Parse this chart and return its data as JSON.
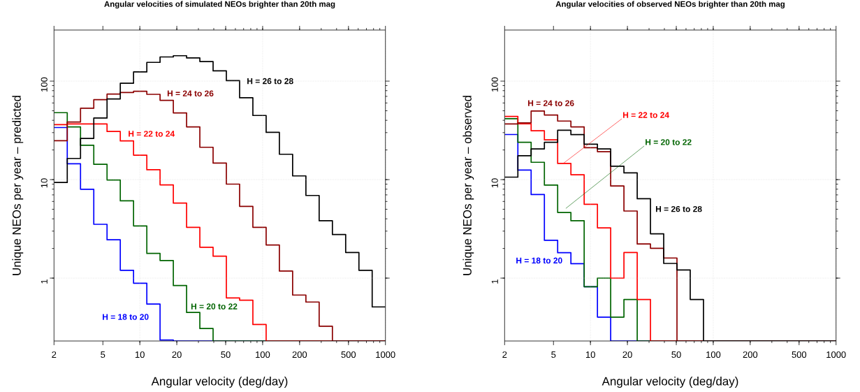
{
  "chart_data": [
    {
      "type": "histogram",
      "title": "Angular velocities of simulated NEOs brighter than 20th mag",
      "xlabel": "Angular velocity (deg/day)",
      "ylabel": "Unique NEOs per year – predicted",
      "log": "xy",
      "grid": true,
      "xlim": [
        2,
        1000
      ],
      "ylim": [
        0.23,
        330
      ],
      "xticks": [
        2,
        5,
        10,
        20,
        50,
        100,
        200,
        500,
        1000
      ],
      "yticks": [
        1,
        10,
        100
      ],
      "bins": [
        2,
        2.564,
        3.288,
        4.216,
        5.406,
        6.932,
        8.888,
        11.4,
        14.61,
        18.74,
        24.03,
        30.81,
        39.5,
        50.65,
        64.94,
        83.27,
        106.8,
        136.9,
        175.5,
        225.1,
        288.6,
        370.0,
        474.5,
        608.4,
        780.1,
        1000
      ],
      "series": [
        {
          "name": "H = 18 to 20",
          "color": "#0000ff",
          "values": [
            33.8,
            14.5,
            7.99,
            3.52,
            2.45,
            1.2,
            0.888,
            0.545,
            0.235,
            null,
            null,
            null,
            null,
            null,
            null,
            null,
            null,
            null,
            null,
            null,
            null,
            null,
            null,
            null,
            null
          ]
        },
        {
          "name": "H = 20 to 22",
          "color": "#006400",
          "values": [
            47.8,
            34.3,
            22.3,
            14.3,
            9.92,
            6.09,
            3.39,
            1.78,
            1.51,
            0.841,
            0.448,
            0.308,
            null,
            null,
            null,
            null,
            null,
            null,
            null,
            null,
            null,
            null,
            null,
            null,
            null
          ]
        },
        {
          "name": "H = 22 to 24",
          "color": "#ff0000",
          "values": [
            36.1,
            36.7,
            36.7,
            36.7,
            30.8,
            24.7,
            17.7,
            12.6,
            8.85,
            5.77,
            3.28,
            2.06,
            1.67,
            0.63,
            0.597,
            0.338,
            null,
            null,
            null,
            null,
            null,
            null,
            null,
            null,
            null
          ]
        },
        {
          "name": "H = 24 to 26",
          "color": "#8b0000",
          "values": [
            24.8,
            38.5,
            53.0,
            64.8,
            73.8,
            76.7,
            78.8,
            73.4,
            63.8,
            47.6,
            34.3,
            21.3,
            14.7,
            9.0,
            5.35,
            3.28,
            2.17,
            1.18,
            0.673,
            0.572,
            0.325,
            null,
            null,
            null,
            null
          ]
        },
        {
          "name": "H = 26 to 28",
          "color": "#000000",
          "values": [
            9.35,
            16.4,
            26.2,
            42.2,
            65.9,
            95.2,
            124,
            155,
            176,
            181,
            172,
            158,
            127,
            101,
            67.7,
            44.8,
            30.2,
            18.1,
            10.9,
            6.9,
            3.82,
            2.77,
            1.82,
            1.2,
            0.51
          ]
        }
      ]
    },
    {
      "type": "histogram",
      "title": "Angular velocities of observed NEOs brighter than 20th mag",
      "xlabel": "Angular velocity (deg/day)",
      "ylabel": "Unique NEOs per year – observed",
      "log": "xy",
      "grid": true,
      "xlim": [
        2,
        1000
      ],
      "ylim": [
        0.23,
        330
      ],
      "xticks": [
        2,
        5,
        10,
        20,
        50,
        100,
        200,
        500,
        1000
      ],
      "yticks": [
        1,
        10,
        100
      ],
      "bins": [
        2,
        2.564,
        3.288,
        4.216,
        5.406,
        6.932,
        8.888,
        11.4,
        14.61,
        18.74,
        24.03,
        30.81,
        39.5,
        50.65,
        64.94,
        83.27,
        106.8,
        136.9,
        175.5,
        225.1,
        288.6,
        370.0,
        474.5,
        608.4,
        780.1,
        1000
      ],
      "series": [
        {
          "name": "H = 18 to 20",
          "color": "#0000ff",
          "values": [
            28.7,
            12.5,
            7.05,
            2.42,
            1.81,
            1.4,
            0.818,
            0.402,
            null,
            null,
            null,
            null,
            null,
            null,
            null,
            null,
            null,
            null,
            null,
            null,
            null,
            null,
            null,
            null,
            null
          ]
        },
        {
          "name": "H = 20 to 22",
          "color": "#006400",
          "values": [
            41.5,
            23.9,
            15.0,
            8.8,
            4.64,
            3.82,
            0.818,
            1.0,
            0.402,
            0.607,
            null,
            null,
            null,
            null,
            null,
            null,
            null,
            null,
            null,
            null,
            null,
            null,
            null,
            null,
            null
          ]
        },
        {
          "name": "H = 22 to 24",
          "color": "#ff0000",
          "values": [
            43.8,
            36.9,
            31.3,
            25.3,
            14.6,
            11.2,
            5.61,
            3.24,
            1.0,
            1.82,
            0.607,
            null,
            null,
            null,
            null,
            null,
            null,
            null,
            null,
            null,
            null,
            null,
            null,
            null,
            null
          ]
        },
        {
          "name": "H = 24 to 26",
          "color": "#8b0000",
          "values": [
            36.8,
            37.7,
            49.7,
            45.3,
            39.3,
            34.3,
            21.1,
            19.2,
            8.61,
            4.8,
            2.22,
            2.01,
            1.6,
            null,
            null,
            null,
            null,
            null,
            null,
            null,
            null,
            null,
            null,
            null,
            null
          ]
        },
        {
          "name": "H = 26 to 28",
          "color": "#000000",
          "values": [
            10.6,
            17.5,
            20.5,
            23.9,
            31.7,
            28.6,
            22.9,
            20.5,
            13.7,
            11.7,
            6.39,
            2.82,
            1.41,
            1.21,
            0.607,
            null,
            null,
            null,
            null,
            null,
            null,
            null,
            null,
            null,
            null
          ]
        }
      ]
    }
  ]
}
